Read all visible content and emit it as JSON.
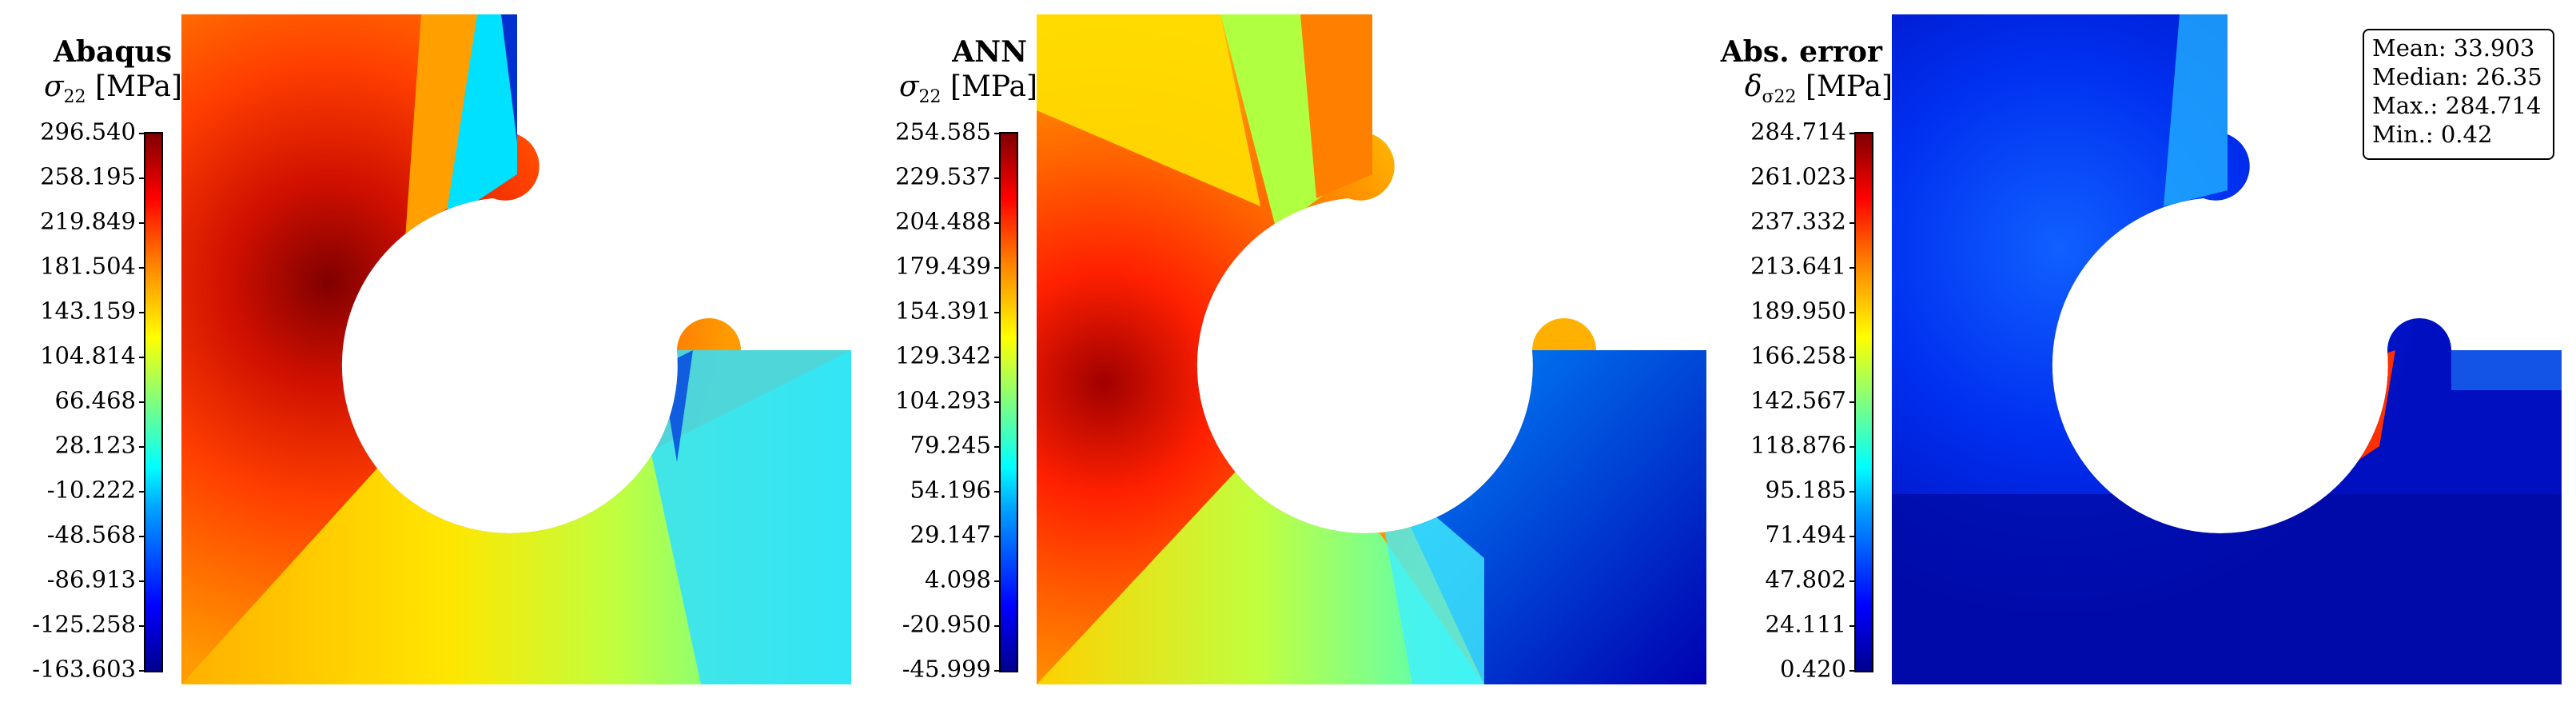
{
  "panels": [
    {
      "title": "Abaqus",
      "label_symbol": "σ",
      "label_sub": "22",
      "label_unit": "[MPa]",
      "ticks": [
        "296.540",
        "258.195",
        "219.849",
        "181.504",
        "143.159",
        "104.814",
        "66.468",
        "28.123",
        "-10.222",
        "-48.568",
        "-86.913",
        "-125.258",
        "-163.603"
      ]
    },
    {
      "title": "ANN",
      "label_symbol": "σ",
      "label_sub": "22",
      "label_unit": "[MPa]",
      "ticks": [
        "254.585",
        "229.537",
        "204.488",
        "179.439",
        "154.391",
        "129.342",
        "104.293",
        "79.245",
        "54.196",
        "29.147",
        "4.098",
        "-20.950",
        "-45.999"
      ]
    },
    {
      "title": "Abs. error",
      "label_symbol": "δ",
      "label_sub": "σ22",
      "label_unit": "[MPa]",
      "ticks": [
        "284.714",
        "261.023",
        "237.332",
        "213.641",
        "189.950",
        "166.258",
        "142.567",
        "118.876",
        "95.185",
        "71.494",
        "47.802",
        "24.111",
        "0.420"
      ]
    }
  ],
  "stats": {
    "mean": "Mean: 33.903",
    "median": "Median: 26.35",
    "max": "Max.: 284.714",
    "min": "Min.: 0.42"
  },
  "colormap": [
    "#00008f",
    "#0000ff",
    "#00a0ff",
    "#00ffff",
    "#7fff7f",
    "#ffff00",
    "#ff8000",
    "#ff0000",
    "#800000"
  ]
}
